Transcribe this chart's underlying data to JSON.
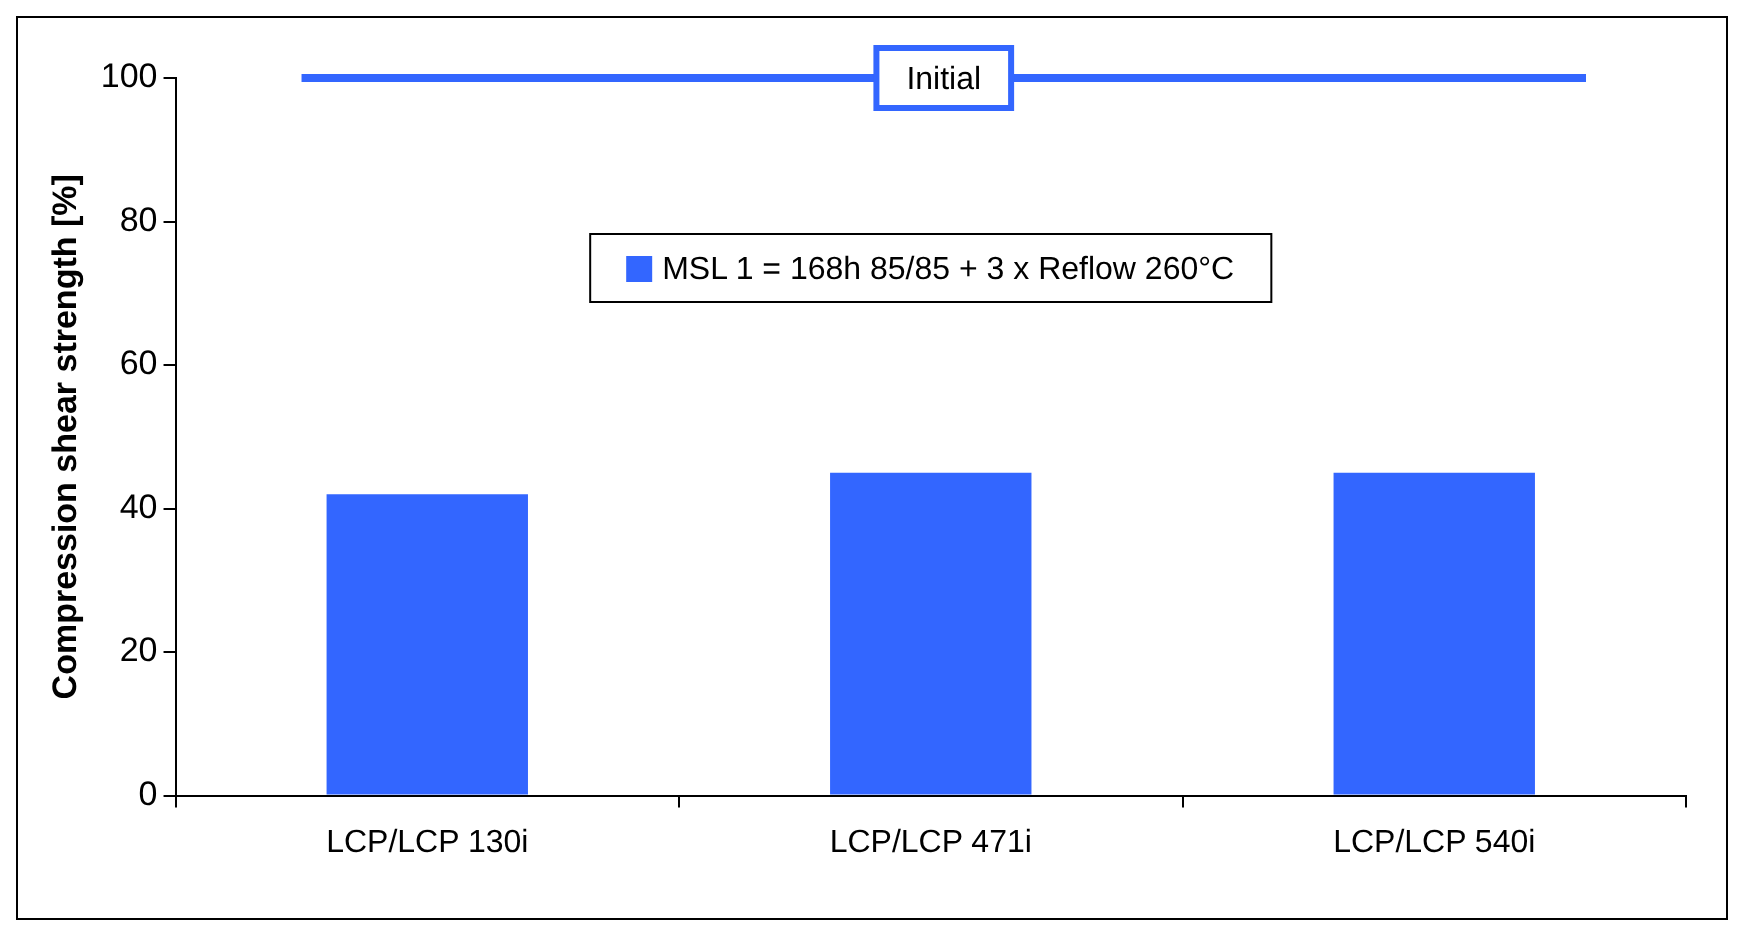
{
  "chart_data": {
    "type": "bar",
    "ylabel": "Compression shear strength [%]",
    "categories": [
      "LCP/LCP 130i",
      "LCP/LCP 471i",
      "LCP/LCP 540i"
    ],
    "series": [
      {
        "name": "MSL 1 = 168h 85/85 + 3 x Reflow 260°C",
        "color": "#3366ff",
        "values": [
          42,
          45,
          45
        ]
      }
    ],
    "ylim": [
      0,
      100
    ],
    "yticks": [
      0,
      20,
      40,
      60,
      80,
      100
    ],
    "grid": false,
    "legend": "top",
    "ref_lines": [
      {
        "axis": "y",
        "value": 100,
        "label": "Initial",
        "color": "#3366ff"
      }
    ]
  }
}
